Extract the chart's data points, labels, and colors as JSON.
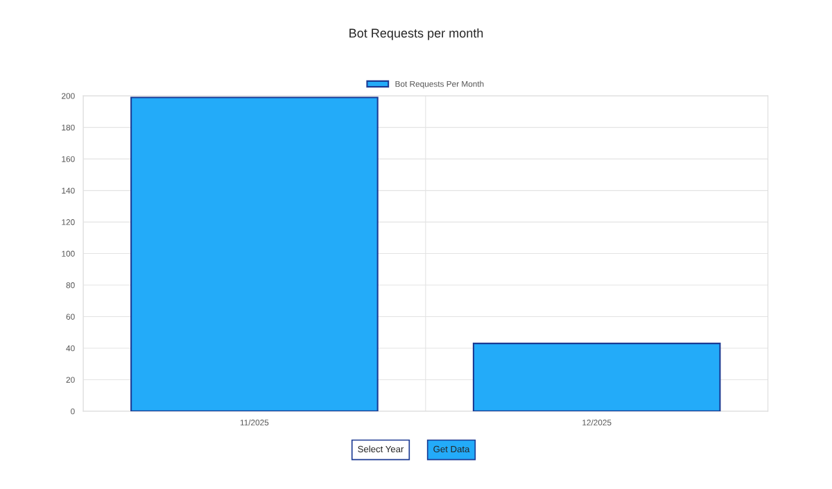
{
  "chart_data": {
    "type": "bar",
    "title": "Bot Requests per month",
    "categories": [
      "11/2025",
      "12/2025"
    ],
    "series": [
      {
        "name": "Bot Requests Per Month",
        "color": "#23abf9",
        "values": [
          199,
          43
        ]
      }
    ],
    "ylim": [
      0,
      200
    ],
    "yticks": [
      0,
      20,
      40,
      60,
      80,
      100,
      120,
      140,
      160,
      180,
      200
    ],
    "grid": true,
    "legend": "top",
    "annotations": [
      "Select Year",
      "Get Data"
    ]
  }
}
